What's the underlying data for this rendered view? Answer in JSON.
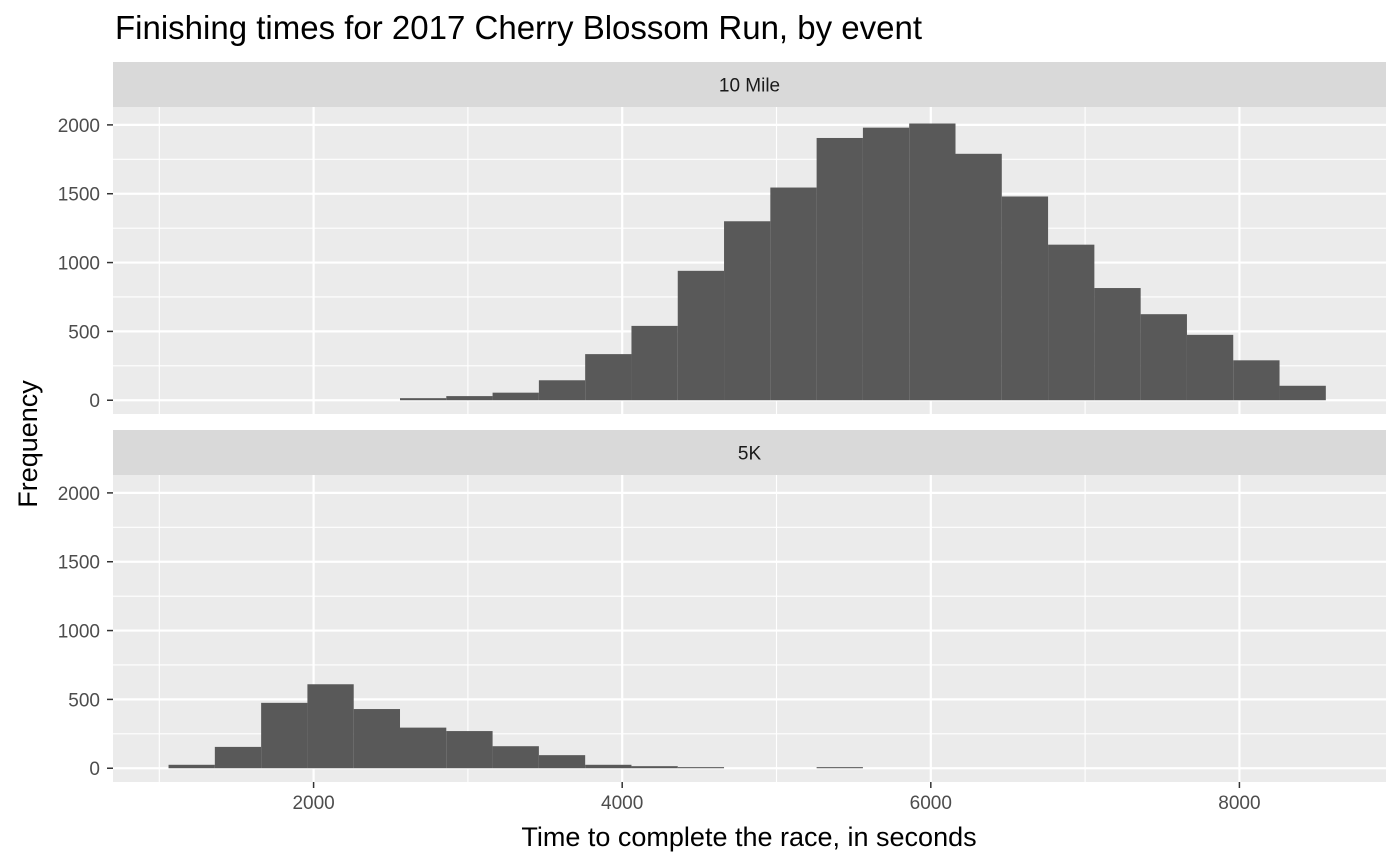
{
  "chart_data": {
    "type": "bar",
    "title": "Finishing times for 2017 Cherry Blossom Run, by event",
    "xlabel": "Time to complete the race, in seconds",
    "ylabel": "Frequency",
    "xlim": [
      700,
      8950
    ],
    "ylim": [
      -100,
      2130
    ],
    "x_ticks": [
      2000,
      4000,
      6000,
      8000
    ],
    "y_ticks": [
      0,
      500,
      1000,
      1500,
      2000
    ],
    "grid": true,
    "bin_width": 300,
    "facets": [
      {
        "name": "10 Mile",
        "bins": [
          {
            "x0": 2560,
            "x1": 2860,
            "count": 15
          },
          {
            "x0": 2860,
            "x1": 3160,
            "count": 30
          },
          {
            "x0": 3160,
            "x1": 3460,
            "count": 55
          },
          {
            "x0": 3460,
            "x1": 3760,
            "count": 145
          },
          {
            "x0": 3760,
            "x1": 4060,
            "count": 335
          },
          {
            "x0": 4060,
            "x1": 4360,
            "count": 540
          },
          {
            "x0": 4360,
            "x1": 4660,
            "count": 940
          },
          {
            "x0": 4660,
            "x1": 4960,
            "count": 1300
          },
          {
            "x0": 4960,
            "x1": 5260,
            "count": 1545
          },
          {
            "x0": 5260,
            "x1": 5560,
            "count": 1905
          },
          {
            "x0": 5560,
            "x1": 5860,
            "count": 1980
          },
          {
            "x0": 5860,
            "x1": 6160,
            "count": 2010
          },
          {
            "x0": 6160,
            "x1": 6460,
            "count": 1790
          },
          {
            "x0": 6460,
            "x1": 6760,
            "count": 1480
          },
          {
            "x0": 6760,
            "x1": 7060,
            "count": 1130
          },
          {
            "x0": 7060,
            "x1": 7360,
            "count": 815
          },
          {
            "x0": 7360,
            "x1": 7660,
            "count": 625
          },
          {
            "x0": 7660,
            "x1": 7960,
            "count": 475
          },
          {
            "x0": 7960,
            "x1": 8260,
            "count": 290
          },
          {
            "x0": 8260,
            "x1": 8560,
            "count": 105
          }
        ]
      },
      {
        "name": "5K",
        "bins": [
          {
            "x0": 1060,
            "x1": 1360,
            "count": 25
          },
          {
            "x0": 1360,
            "x1": 1660,
            "count": 155
          },
          {
            "x0": 1660,
            "x1": 1960,
            "count": 475
          },
          {
            "x0": 1960,
            "x1": 2260,
            "count": 610
          },
          {
            "x0": 2260,
            "x1": 2560,
            "count": 430
          },
          {
            "x0": 2560,
            "x1": 2860,
            "count": 295
          },
          {
            "x0": 2860,
            "x1": 3160,
            "count": 270
          },
          {
            "x0": 3160,
            "x1": 3460,
            "count": 160
          },
          {
            "x0": 3460,
            "x1": 3760,
            "count": 95
          },
          {
            "x0": 3760,
            "x1": 4060,
            "count": 25
          },
          {
            "x0": 4060,
            "x1": 4360,
            "count": 15
          },
          {
            "x0": 4360,
            "x1": 4660,
            "count": 8
          },
          {
            "x0": 5260,
            "x1": 5560,
            "count": 8
          }
        ]
      }
    ],
    "colors": {
      "bar": "#595959",
      "panel_bg": "#ebebeb",
      "strip_bg": "#d9d9d9",
      "grid": "#ffffff"
    }
  }
}
